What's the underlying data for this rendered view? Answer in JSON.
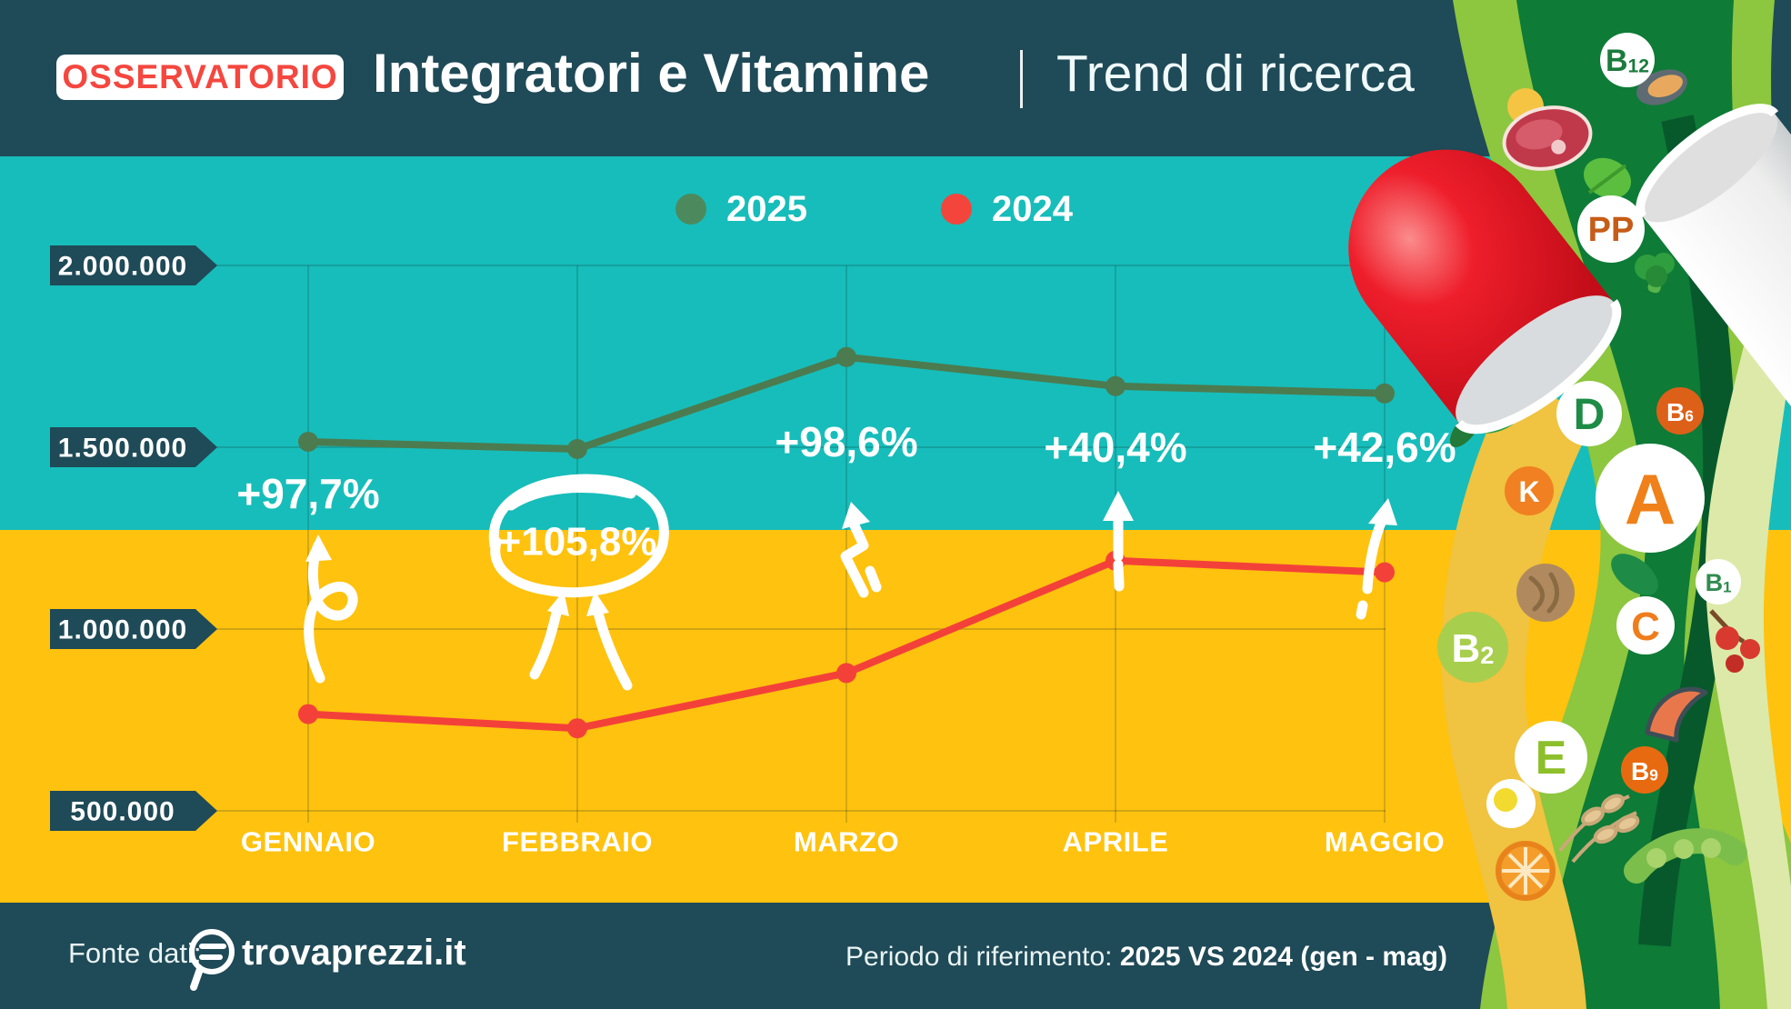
{
  "header": {
    "badge": "OSSERVATORIO",
    "title": "Integratori e Vitamine",
    "subtitle": "Trend di ricerca"
  },
  "legend": [
    {
      "label": "2025",
      "color": "#4C8A5E"
    },
    {
      "label": "2024",
      "color": "#F4453C"
    }
  ],
  "chart_data": {
    "type": "line",
    "title": "Integratori e Vitamine - Trend di ricerca",
    "categories": [
      "GENNAIO",
      "FEBBRAIO",
      "MARZO",
      "APRILE",
      "MAGGIO"
    ],
    "series": [
      {
        "name": "2025",
        "color": "#4C7B50",
        "values": [
          1515000,
          1495000,
          1748000,
          1668000,
          1648000
        ]
      },
      {
        "name": "2024",
        "color": "#F3413A",
        "values": [
          766000,
          727000,
          879000,
          1188000,
          1156000
        ]
      }
    ],
    "annotations": [
      {
        "month": "GENNAIO",
        "text": "+97,7%",
        "circled": false
      },
      {
        "month": "FEBBRAIO",
        "text": "+105,8%",
        "circled": true
      },
      {
        "month": "MARZO",
        "text": "+98,6%",
        "circled": false
      },
      {
        "month": "APRILE",
        "text": "+40,4%",
        "circled": false
      },
      {
        "month": "MAGGIO",
        "text": "+42,6%",
        "circled": false
      }
    ],
    "y_ticks": [
      {
        "label": "2.000.000",
        "value": 2000000
      },
      {
        "label": "1.500.000",
        "value": 1500000
      },
      {
        "label": "1.000.000",
        "value": 1000000
      },
      {
        "label": "500.000",
        "value": 500000
      }
    ],
    "ylim": [
      500000,
      2000000
    ],
    "grid": true,
    "legend_position": "top"
  },
  "footer": {
    "source_label": "Fonte dati:",
    "logo_text": "trovaprezzi.it",
    "period_label": "Periodo di riferimento: ",
    "period_value": "2025 VS 2024 (gen - mag)"
  },
  "decoration": {
    "vitamins": [
      {
        "label": "B12",
        "circle": "#FFFFFF",
        "text": "#1B7B3C"
      },
      {
        "label": "PP",
        "circle": "#FFFFFF",
        "text": "#C65C17"
      },
      {
        "label": "D",
        "circle": "#FFFFFF",
        "text": "#1E8C46"
      },
      {
        "label": "B6",
        "circle": "#DD6018",
        "text": "#FFFFFF"
      },
      {
        "label": "K",
        "circle": "#F08021",
        "text": "#FFFFFF"
      },
      {
        "label": "A",
        "circle": "#FFFFFF",
        "text": "#F08019"
      },
      {
        "label": "B1",
        "circle": "#FFFFFF",
        "text": "#2F8C4F"
      },
      {
        "label": "C",
        "circle": "#FFFFFF",
        "text": "#EF7D1C"
      },
      {
        "label": "B2",
        "circle": "#A8CE4D",
        "text": "#FFFFFF"
      },
      {
        "label": "E",
        "circle": "#FFFFFF",
        "text": "#8CBF2A"
      },
      {
        "label": "B9",
        "circle": "#E86A10",
        "text": "#FFFFFF"
      }
    ]
  },
  "colors": {
    "header_bg": "#1F4A57",
    "teal_band": "#17BDBA",
    "yellow_band": "#FFC20E",
    "badge_text": "#F4473F",
    "grid": "rgba(10,40,45,0.25)",
    "tick_tag_bg": "#1F4A57",
    "annotation_text": "#FFFFFF"
  }
}
